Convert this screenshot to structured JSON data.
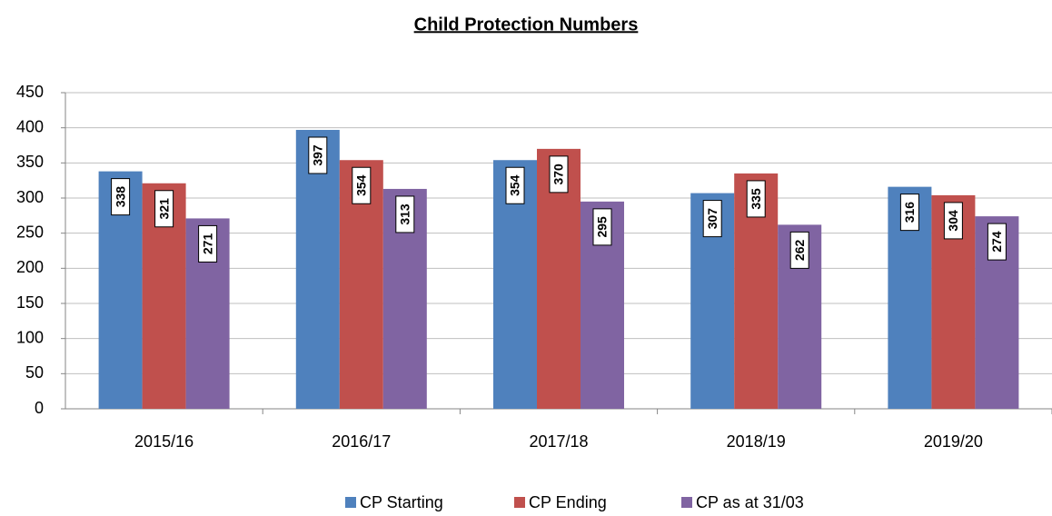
{
  "chart_data": {
    "type": "bar",
    "title": "Child Protection Numbers",
    "categories": [
      "2015/16",
      "2016/17",
      "2017/18",
      "2018/19",
      "2019/20"
    ],
    "series": [
      {
        "name": "CP Starting",
        "color": "#4f81bd",
        "values": [
          338,
          397,
          354,
          307,
          316
        ]
      },
      {
        "name": "CP Ending",
        "color": "#c0504d",
        "values": [
          321,
          354,
          370,
          335,
          304
        ]
      },
      {
        "name": "CP as at 31/03",
        "color": "#8064a2",
        "values": [
          271,
          313,
          295,
          262,
          274
        ]
      }
    ],
    "ylim": [
      0,
      450
    ],
    "yticks": [
      0,
      50,
      100,
      150,
      200,
      250,
      300,
      350,
      400,
      450
    ],
    "grid": true,
    "legend": "bottom"
  }
}
